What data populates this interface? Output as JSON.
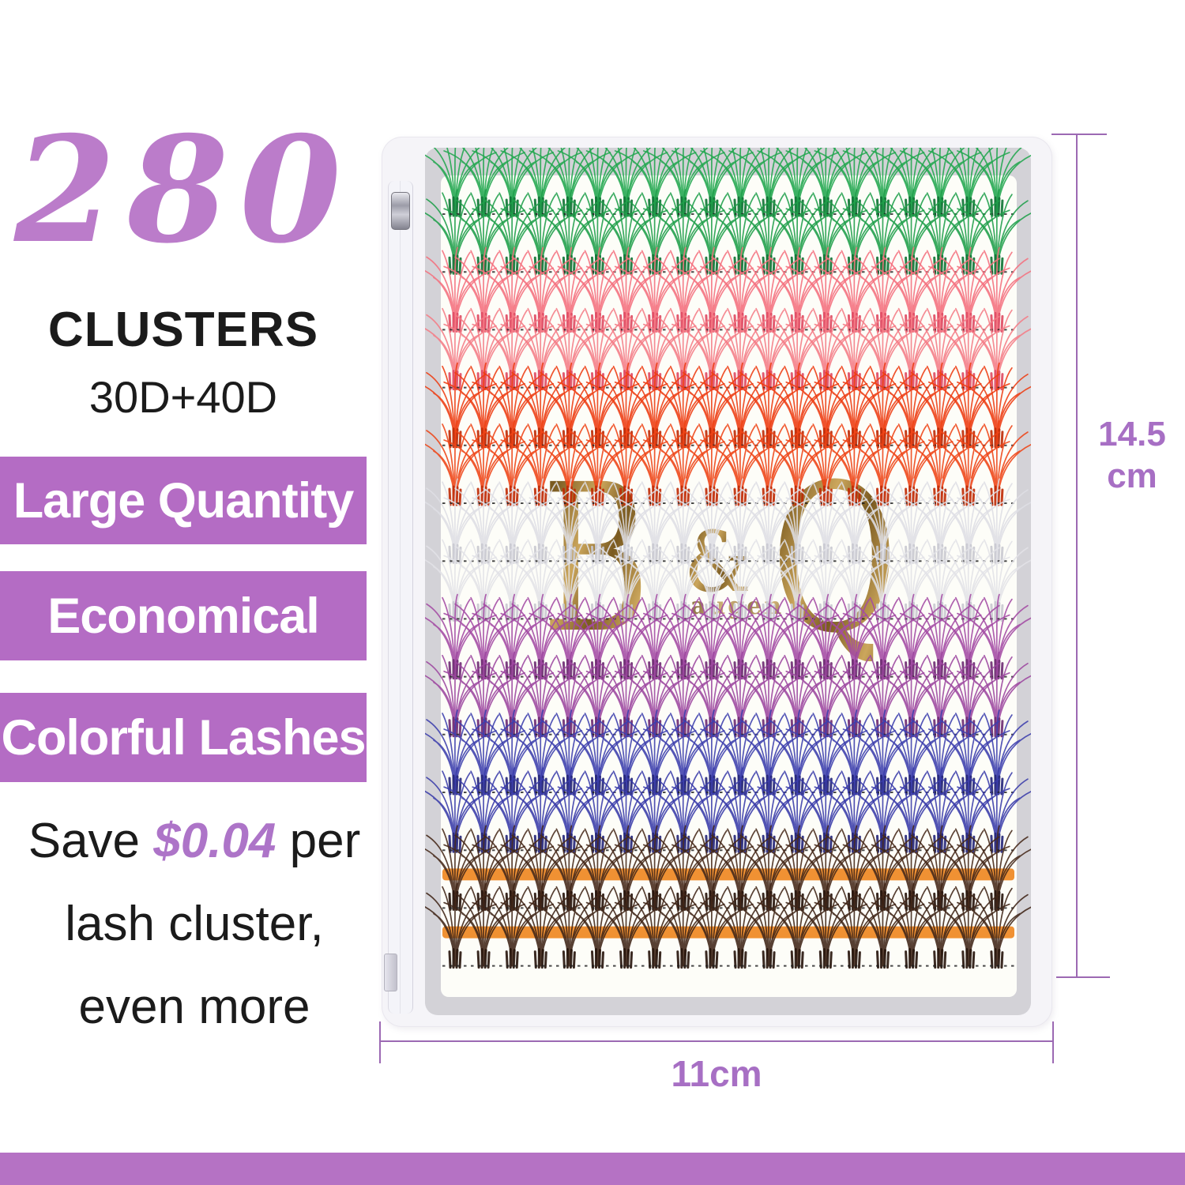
{
  "colors": {
    "text": "#1b1b1b",
    "big_number": "#bb7cca",
    "banner": "#b46cc4",
    "banner_text": "#ffffff",
    "amount": "#ad74c8",
    "footer": "#b572c4",
    "dim_line": "#9c69b3",
    "dim_label": "#a76fc4",
    "bag": "#f5f4f8",
    "frame": "#d3d2d7",
    "tray": "#fdfdf8",
    "watermark_dark": "#7a5a20",
    "watermark_light": "#cba65c",
    "strip": "#f09133"
  },
  "left_panel": {
    "big_number": "280",
    "clusters_label": "CLUSTERS",
    "spec": "30D+40D",
    "banners": [
      {
        "label": "Large Quantity"
      },
      {
        "label": "Economical"
      },
      {
        "label": "Colorful Lashes"
      }
    ],
    "savings": {
      "prefix": "Save ",
      "amount": "$0.04",
      "suffix": " per",
      "line2": "lash cluster,",
      "line3": "even more"
    }
  },
  "product": {
    "watermark": {
      "b": "B",
      "amp": "&",
      "q": "Q",
      "brand": "augen"
    },
    "clusters_per_row": 20,
    "strip_color": "#f09133",
    "rows": [
      {
        "name": "green",
        "main": "#22a74f",
        "dark": "#0e7434",
        "strip": false
      },
      {
        "name": "green",
        "main": "#1f9f4a",
        "dark": "#0e7434",
        "strip": false
      },
      {
        "name": "pink",
        "main": "#f5717f",
        "dark": "#e04a62",
        "strip": false
      },
      {
        "name": "pink",
        "main": "#f57d87",
        "dark": "#e04a62",
        "strip": false
      },
      {
        "name": "red",
        "main": "#ee3c12",
        "dark": "#c02a05",
        "strip": false
      },
      {
        "name": "red",
        "main": "#ef4416",
        "dark": "#c02a05",
        "strip": false
      },
      {
        "name": "white",
        "main": "#dfdfe5",
        "dark": "#c9c9d1",
        "strip": false
      },
      {
        "name": "white",
        "main": "#e3e3e8",
        "dark": "#c9c9d1",
        "strip": false
      },
      {
        "name": "purple",
        "main": "#a44ba4",
        "dark": "#6e2b73",
        "strip": false
      },
      {
        "name": "purple",
        "main": "#9d47a0",
        "dark": "#6e2b73",
        "strip": false
      },
      {
        "name": "blue",
        "main": "#3d3fae",
        "dark": "#242579",
        "strip": false
      },
      {
        "name": "blue",
        "main": "#3a3caa",
        "dark": "#242579",
        "strip": false
      },
      {
        "name": "brown",
        "main": "#46291a",
        "dark": "#26130a",
        "strip": true
      },
      {
        "name": "brown",
        "main": "#402517",
        "dark": "#26130a",
        "strip": true
      }
    ]
  },
  "dimensions": {
    "height_value": "14.5",
    "height_unit": "cm",
    "width_label": "11cm"
  }
}
